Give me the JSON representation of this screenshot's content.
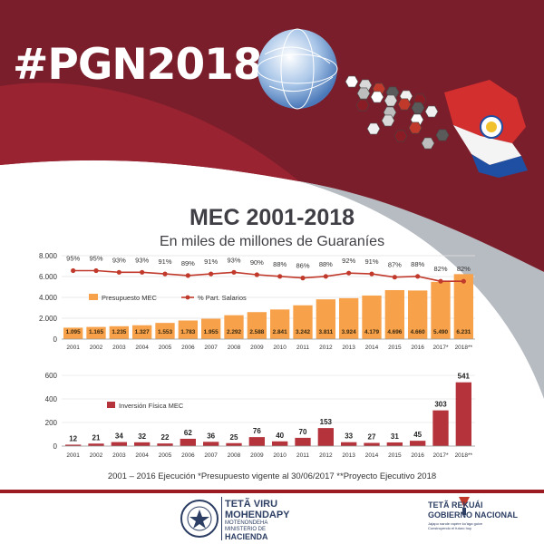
{
  "header": {
    "hashtag": "#PGN2018",
    "colors": {
      "maroon": "#7b1e2b",
      "dark_maroon": "#5e1622",
      "grey": "#b7bcc2"
    }
  },
  "chart_title": "MEC 2001-2018",
  "chart_subtitle": "En miles de millones de Guaraníes",
  "footnote": "2001 – 2016 Ejecución *Presupuesto vigente al 30/06/2017 **Proyecto Ejecutivo 2018",
  "chart_data": [
    {
      "type": "bar",
      "categories": [
        "2001",
        "2002",
        "2003",
        "2004",
        "2005",
        "2006",
        "2007",
        "2008",
        "2009",
        "2010",
        "2011",
        "2012",
        "2013",
        "2014",
        "2015",
        "2016",
        "2017*",
        "2018**"
      ],
      "series": [
        {
          "name": "Presupuesto MEC",
          "type": "bar",
          "color": "#f7a14a",
          "values": [
            1095,
            1165,
            1235,
            1327,
            1553,
            1783,
            1955,
            2292,
            2588,
            2841,
            3242,
            3811,
            3924,
            4179,
            4696,
            4660,
            5490,
            6231
          ],
          "labels": [
            "1.095",
            "1.165",
            "1.235",
            "1.327",
            "1.553",
            "1.783",
            "1.955",
            "2.292",
            "2.588",
            "2.841",
            "3.242",
            "3.811",
            "3.924",
            "4.179",
            "4.696",
            "4.660",
            "5.490",
            "6.231"
          ]
        },
        {
          "name": "% Part. Salarios",
          "type": "line",
          "color": "#c0392b",
          "values": [
            95,
            95,
            93,
            93,
            91,
            89,
            91,
            93,
            90,
            88,
            86,
            88,
            92,
            91,
            87,
            88,
            82,
            82
          ],
          "labels": [
            "95%",
            "95%",
            "93%",
            "93%",
            "91%",
            "89%",
            "91%",
            "93%",
            "90%",
            "88%",
            "86%",
            "88%",
            "92%",
            "91%",
            "87%",
            "88%",
            "82%",
            "82%"
          ]
        }
      ],
      "yticks": [
        "0",
        "2.000",
        "4.000",
        "6.000",
        "8.000"
      ],
      "ylim": [
        0,
        8000
      ],
      "legend": "top-left"
    },
    {
      "type": "bar",
      "categories": [
        "2001",
        "2002",
        "2003",
        "2004",
        "2005",
        "2006",
        "2007",
        "2008",
        "2009",
        "2010",
        "2011",
        "2012",
        "2013",
        "2014",
        "2015",
        "2016",
        "2017*",
        "2018**"
      ],
      "series": [
        {
          "name": "Inversión Física MEC",
          "color": "#b5343c",
          "values": [
            12,
            21,
            34,
            32,
            22,
            62,
            36,
            25,
            76,
            40,
            70,
            153,
            33,
            27,
            31,
            45,
            303,
            541
          ]
        }
      ],
      "yticks": [
        "0",
        "200",
        "400",
        "600"
      ],
      "ylim": [
        0,
        600
      ],
      "legend": "top-left"
    }
  ],
  "footer": {
    "ministry_line1": "TETÃ VIRU",
    "ministry_line2": "MOHENDAPY",
    "ministry_line3": "MOTENONDEHA",
    "ministry_line4": "MINISTERIO DE",
    "ministry_line5": "HACIENDA",
    "gov_line1": "TETÃ REKUÁI",
    "gov_line2": "GOBIERNO NACIONAL",
    "gov_line3": "Jajapo nande rapére ko'ága guive",
    "gov_line4": "Construyendo el futuro hoy"
  }
}
